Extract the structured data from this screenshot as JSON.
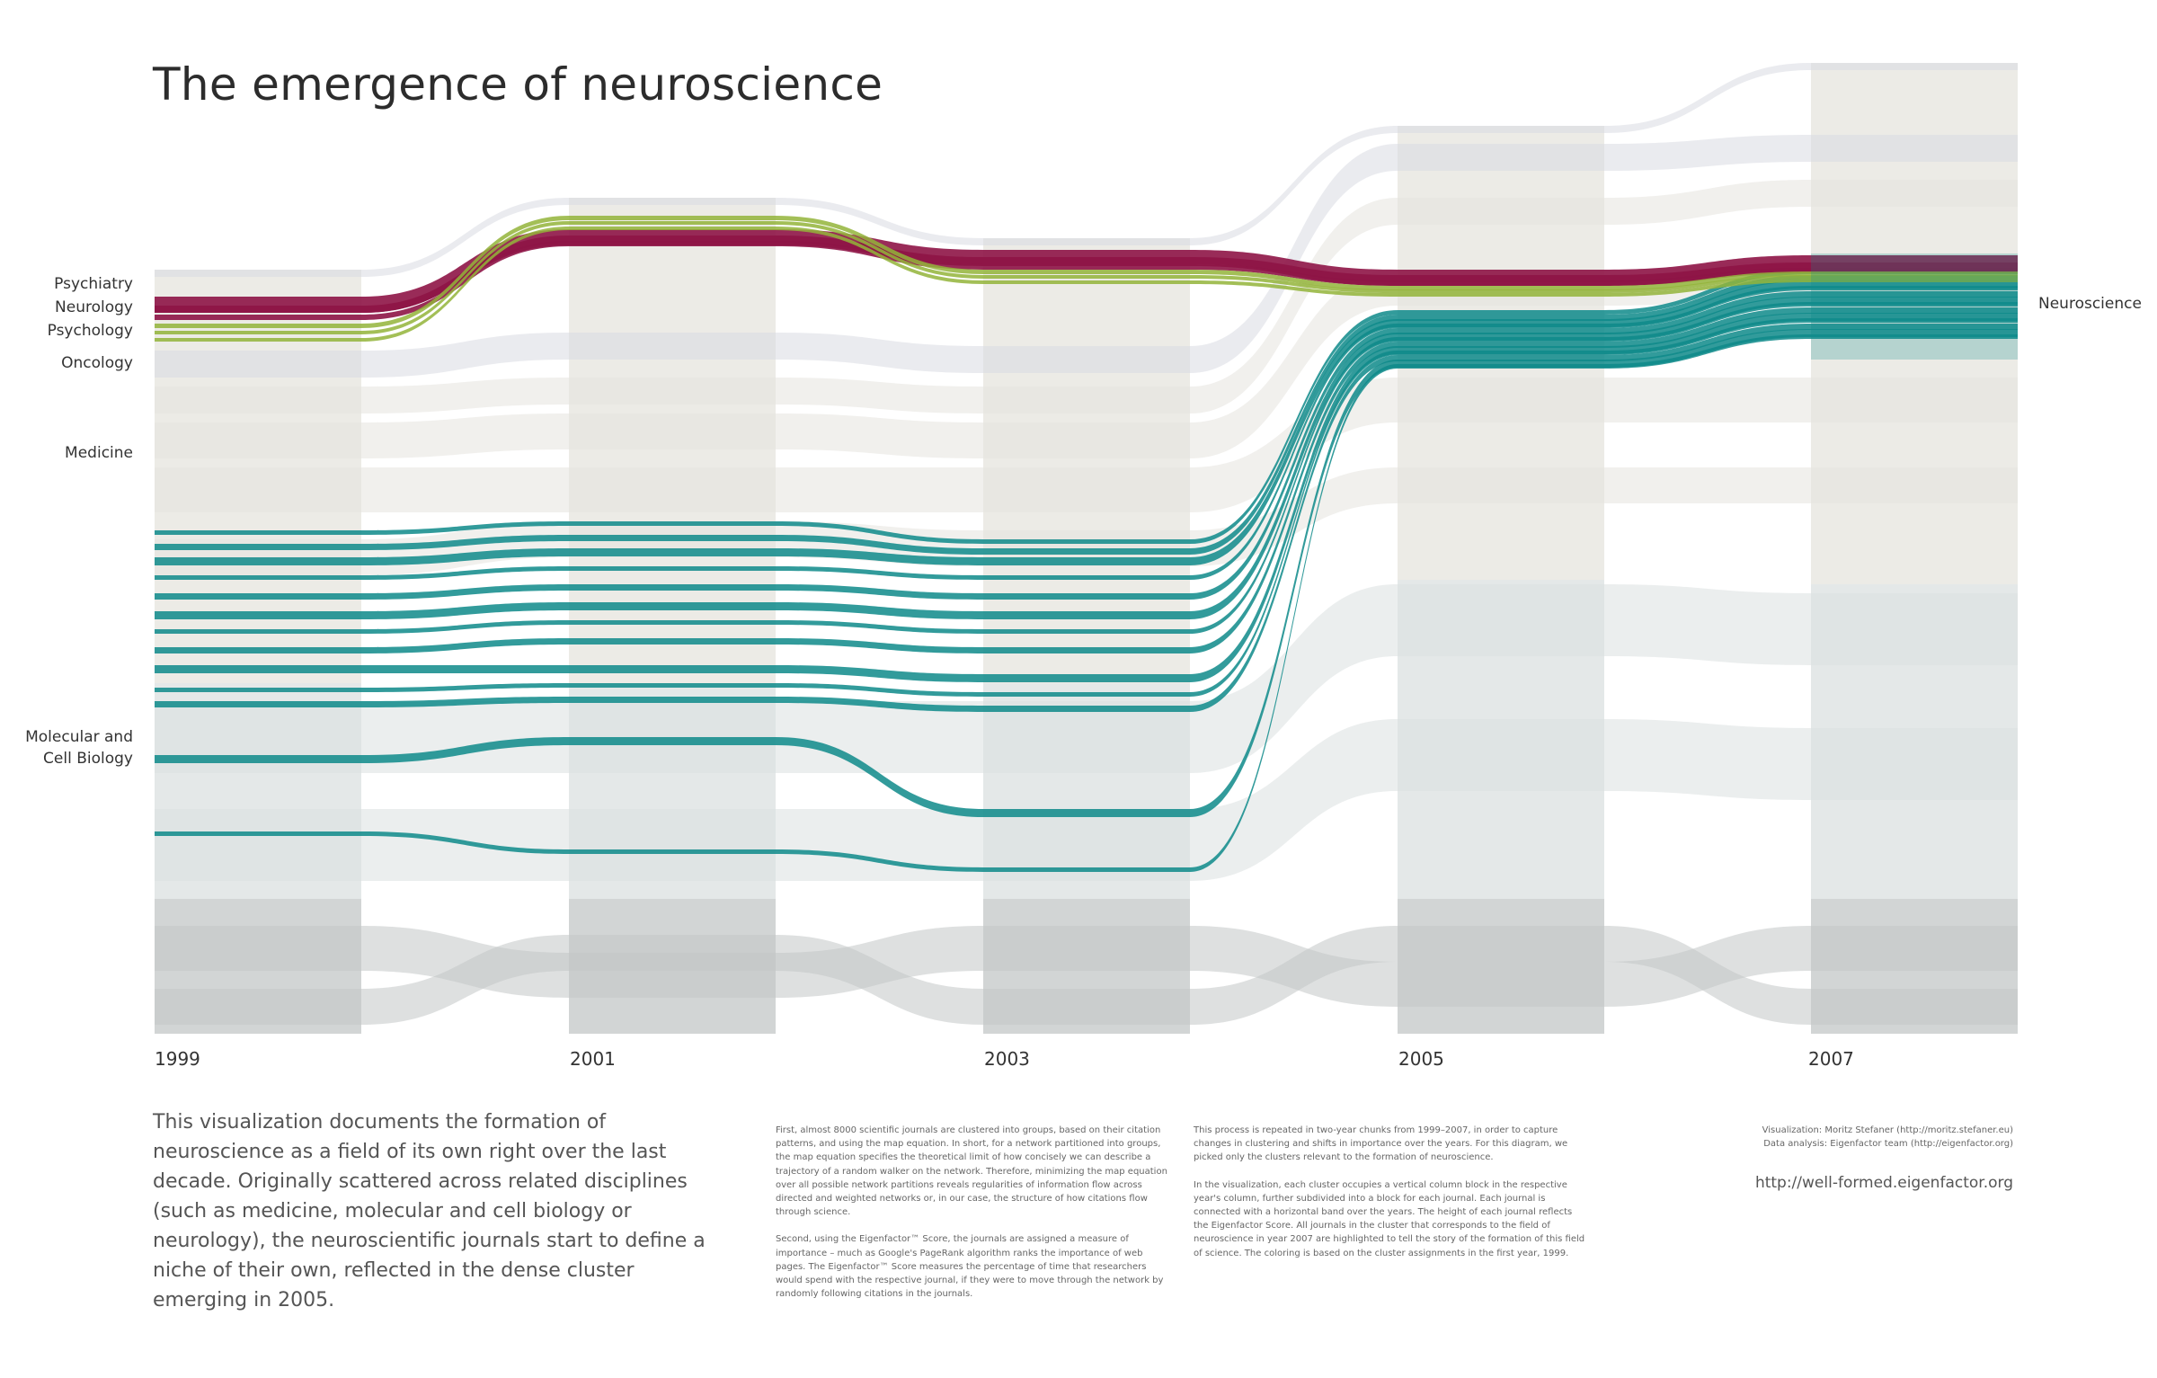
{
  "title": "The emergence of neuroscience",
  "category_labels": [
    "Psychiatry",
    "Neurology",
    "Psychology",
    "Oncology",
    "Medicine",
    "Molecular and\nCell Biology"
  ],
  "target_label": "Neuroscience",
  "years": [
    "1999",
    "2001",
    "2003",
    "2005",
    "2007"
  ],
  "intro": "This visualization documents the formation of neuroscience as a field of its own right over the last decade. Originally scattered across related disciplines (such as medicine, molecular and cell biology or neurology), the neuroscientific journals start to define a niche of their own, reflected in the dense cluster emerging in 2005.",
  "method_col1": [
    "First, almost 8000 scientific journals are clustered into groups, based on their citation patterns, and using the map equation. In short, for a network partitioned into groups, the map equation specifies the theoretical limit of how concisely we can describe a trajectory of a random walker on the network. Therefore, minimizing the map equation over all possible network partitions reveals regularities of information flow across directed and weighted networks or, in our case, the structure of how citations flow through science.",
    "Second, using the Eigenfactor™ Score, the journals are assigned a measure of importance – much as Google's PageRank algorithm ranks the importance of web pages. The Eigenfactor™ Score measures the percentage of time that researchers would spend with the respective journal, if they were to move through the network by randomly following citations in the journals."
  ],
  "method_col2": [
    "This process is repeated in two-year chunks from 1999–2007, in order to capture changes in clustering and shifts in importance over the years. For this diagram, we picked only the clusters relevant to the formation of neuroscience.",
    "In the visualization, each cluster occupies a vertical column block in the respective year's column, further subdivided into a block for each journal. Each journal is connected with a horizontal band over the years. The height of each journal reflects the Eigenfactor Score. All journals in the cluster that corresponds to the field of neuroscience in year 2007 are highlighted to tell the story of the formation of this field of science. The coloring is based on the cluster assignments in the first year, 1999."
  ],
  "credits": [
    "Visualization: Moritz Stefaner (http://moritz.stefaner.eu)",
    "Data analysis: Eigenfactor team (http://eigenfactor.org)"
  ],
  "url": "http://well-formed.eigenfactor.org",
  "colors": {
    "psychiatry": "#c9b9ba",
    "neurology": "#8e1446",
    "psychology": "#93b43a",
    "oncology": "#d8dbe2",
    "medicine": "#e6e4de",
    "molecular_cell_biology": "#0e8a8a",
    "other_biology": "#dbe0e0",
    "other": "#c3c7c7",
    "highlight_light": "#4fb8bf",
    "neurology_light": "#c0306f",
    "psychology_light": "#b9d080"
  }
}
